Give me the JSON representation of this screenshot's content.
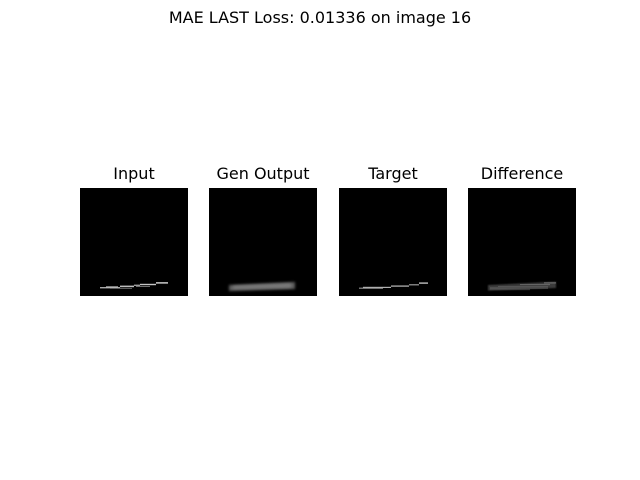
{
  "figure": {
    "title": "MAE LAST Loss: 0.01336 on image 16"
  },
  "panels": [
    {
      "id": "input",
      "title": "Input"
    },
    {
      "id": "gen-output",
      "title": "Gen Output"
    },
    {
      "id": "target",
      "title": "Target"
    },
    {
      "id": "difference",
      "title": "Difference"
    }
  ],
  "colors": {
    "background": "#ffffff",
    "image_background": "#000000",
    "stroke_light": "#b5b5b5",
    "stroke_mid": "#7f7f7f",
    "stroke_dark": "#4a4a4a"
  }
}
